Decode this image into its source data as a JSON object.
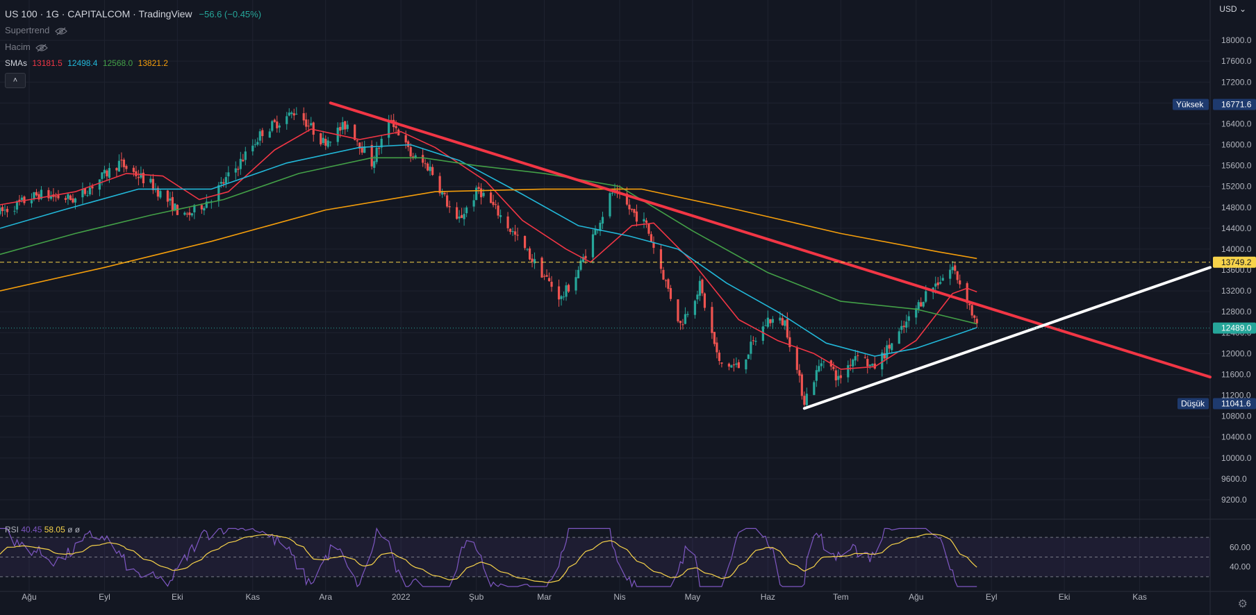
{
  "header": {
    "symbol": "US 100",
    "interval": "1G",
    "exchange": "CAPITALCOM",
    "source": "TradingView",
    "change": "−56.6 (−0.45%)"
  },
  "indicators": {
    "supertrend_label": "Supertrend",
    "volume_label": "Hacim",
    "smas_label": "SMAs",
    "smas_values": [
      {
        "value": "13181.5",
        "color": "#f23645"
      },
      {
        "value": "12498.4",
        "color": "#22b8d9"
      },
      {
        "value": "12568.0",
        "color": "#43a047"
      },
      {
        "value": "13821.2",
        "color": "#f59e0b"
      }
    ]
  },
  "controls": {
    "collapse_icon": "chevron-up-icon",
    "collapse_glyph": "˄",
    "currency": "USD",
    "settings_icon": "gear-icon",
    "settings_glyph": "⚙"
  },
  "rsi": {
    "label": "RSI",
    "value1": "40.45",
    "value2": "58.05",
    "extra": "ø ø",
    "axis_ticks": [
      "60.00",
      "40.00"
    ],
    "tick_values": [
      60,
      40
    ],
    "bands": [
      70,
      50,
      30
    ]
  },
  "chart_data": {
    "type": "candlestick",
    "title": "US 100 · 1G · CAPITALCOM",
    "xlabel": "",
    "ylabel": "",
    "ylim": [
      9000,
      18400
    ],
    "y_ticks": [
      9200,
      9600,
      10000,
      10400,
      10800,
      11200,
      11600,
      12000,
      12400,
      12800,
      13200,
      13600,
      14000,
      14400,
      14800,
      15200,
      15600,
      16000,
      16400,
      16800,
      17200,
      17600,
      18000
    ],
    "y_tick_labels": [
      "9200.0",
      "9600.0",
      "10000.0",
      "10400.0",
      "10800.0",
      "11200.0",
      "11600.0",
      "12000.0",
      "12400.0",
      "12800.0",
      "13200.0",
      "13600.0",
      "14000.0",
      "14400.0",
      "14800.0",
      "15200.0",
      "15600.0",
      "16000.0",
      "16400.0",
      "16800.0",
      "17200.0",
      "17600.0",
      "18000.0"
    ],
    "x_month_labels": [
      "Ağu",
      "Eyl",
      "Eki",
      "Kas",
      "Ara",
      "2022",
      "Şub",
      "Mar",
      "Nis",
      "May",
      "Haz",
      "Tem",
      "Ağu",
      "Eyl",
      "Eki",
      "Kas"
    ],
    "x_month_dates": [
      "2021-08-01",
      "2021-09-01",
      "2021-10-01",
      "2021-11-01",
      "2021-12-01",
      "2022-01-01",
      "2022-02-01",
      "2022-03-01",
      "2022-04-01",
      "2022-05-01",
      "2022-06-01",
      "2022-07-01",
      "2022-08-01",
      "2022-09-01",
      "2022-10-01",
      "2022-11-01"
    ],
    "price_path": [
      [
        "2021-07-20",
        14700
      ],
      [
        "2021-08-05",
        15050
      ],
      [
        "2021-08-20",
        14950
      ],
      [
        "2021-09-07",
        15650
      ],
      [
        "2021-09-20",
        15250
      ],
      [
        "2021-10-04",
        14600
      ],
      [
        "2021-10-14",
        14950
      ],
      [
        "2021-10-25",
        15550
      ],
      [
        "2021-11-05",
        16250
      ],
      [
        "2021-11-19",
        16650
      ],
      [
        "2021-11-30",
        16050
      ],
      [
        "2021-12-10",
        16400
      ],
      [
        "2021-12-20",
        15650
      ],
      [
        "2021-12-28",
        16500
      ],
      [
        "2022-01-05",
        15800
      ],
      [
        "2022-01-13",
        15550
      ],
      [
        "2022-01-24",
        14500
      ],
      [
        "2022-02-02",
        15150
      ],
      [
        "2022-02-10",
        14700
      ],
      [
        "2022-02-24",
        13800
      ],
      [
        "2022-03-08",
        13050
      ],
      [
        "2022-03-14",
        13500
      ],
      [
        "2022-03-29",
        15100
      ],
      [
        "2022-04-12",
        14450
      ],
      [
        "2022-04-26",
        12550
      ],
      [
        "2022-05-04",
        13300
      ],
      [
        "2022-05-12",
        11800
      ],
      [
        "2022-05-20",
        11750
      ],
      [
        "2022-06-01",
        12650
      ],
      [
        "2022-06-08",
        12600
      ],
      [
        "2022-06-16",
        11100
      ],
      [
        "2022-06-24",
        11950
      ],
      [
        "2022-06-30",
        11500
      ],
      [
        "2022-07-08",
        12050
      ],
      [
        "2022-07-14",
        11700
      ],
      [
        "2022-07-27",
        12500
      ],
      [
        "2022-08-05",
        13150
      ],
      [
        "2022-08-16",
        13650
      ],
      [
        "2022-08-22",
        13050
      ],
      [
        "2022-08-26",
        12489
      ]
    ],
    "series": [
      {
        "name": "SMA 13181.5",
        "color": "#f23645",
        "values": [
          [
            "2021-07-20",
            14850
          ],
          [
            "2021-08-20",
            15100
          ],
          [
            "2021-09-10",
            15450
          ],
          [
            "2021-09-25",
            15400
          ],
          [
            "2021-10-10",
            14950
          ],
          [
            "2021-10-22",
            15100
          ],
          [
            "2021-11-10",
            15900
          ],
          [
            "2021-11-25",
            16300
          ],
          [
            "2021-12-15",
            16100
          ],
          [
            "2022-01-01",
            16250
          ],
          [
            "2022-01-15",
            15950
          ],
          [
            "2022-02-05",
            15300
          ],
          [
            "2022-02-20",
            14550
          ],
          [
            "2022-03-10",
            14000
          ],
          [
            "2022-03-20",
            13750
          ],
          [
            "2022-04-06",
            14450
          ],
          [
            "2022-04-15",
            14500
          ],
          [
            "2022-05-01",
            13750
          ],
          [
            "2022-05-20",
            12650
          ],
          [
            "2022-06-05",
            12250
          ],
          [
            "2022-06-20",
            12000
          ],
          [
            "2022-07-01",
            11700
          ],
          [
            "2022-07-15",
            11750
          ],
          [
            "2022-08-01",
            12250
          ],
          [
            "2022-08-16",
            13150
          ],
          [
            "2022-08-22",
            13250
          ],
          [
            "2022-08-26",
            13181.5
          ]
        ]
      },
      {
        "name": "SMA 12498.4",
        "color": "#22b8d9",
        "values": [
          [
            "2021-07-20",
            14400
          ],
          [
            "2021-08-15",
            14750
          ],
          [
            "2021-09-15",
            15150
          ],
          [
            "2021-10-15",
            15150
          ],
          [
            "2021-11-15",
            15650
          ],
          [
            "2021-12-15",
            15950
          ],
          [
            "2022-01-05",
            16000
          ],
          [
            "2022-01-25",
            15700
          ],
          [
            "2022-02-20",
            15050
          ],
          [
            "2022-03-15",
            14450
          ],
          [
            "2022-04-05",
            14250
          ],
          [
            "2022-04-25",
            14000
          ],
          [
            "2022-05-15",
            13350
          ],
          [
            "2022-06-05",
            12800
          ],
          [
            "2022-06-25",
            12200
          ],
          [
            "2022-07-15",
            11950
          ],
          [
            "2022-08-01",
            12100
          ],
          [
            "2022-08-20",
            12400
          ],
          [
            "2022-08-26",
            12498.4
          ]
        ]
      },
      {
        "name": "SMA 12568.0",
        "color": "#43a047",
        "values": [
          [
            "2021-07-20",
            13900
          ],
          [
            "2021-08-20",
            14300
          ],
          [
            "2021-09-20",
            14650
          ],
          [
            "2021-10-20",
            14950
          ],
          [
            "2021-11-20",
            15450
          ],
          [
            "2021-12-20",
            15750
          ],
          [
            "2022-01-10",
            15750
          ],
          [
            "2022-02-01",
            15600
          ],
          [
            "2022-03-01",
            15450
          ],
          [
            "2022-04-01",
            15200
          ],
          [
            "2022-05-01",
            14350
          ],
          [
            "2022-06-01",
            13550
          ],
          [
            "2022-07-01",
            13000
          ],
          [
            "2022-08-01",
            12850
          ],
          [
            "2022-08-26",
            12568
          ]
        ]
      },
      {
        "name": "SMA 13821.2",
        "color": "#f59e0b",
        "values": [
          [
            "2021-07-20",
            13200
          ],
          [
            "2021-09-01",
            13650
          ],
          [
            "2021-10-15",
            14150
          ],
          [
            "2021-12-01",
            14750
          ],
          [
            "2022-01-15",
            15100
          ],
          [
            "2022-03-01",
            15150
          ],
          [
            "2022-04-10",
            15150
          ],
          [
            "2022-05-20",
            14750
          ],
          [
            "2022-07-01",
            14300
          ],
          [
            "2022-08-10",
            13950
          ],
          [
            "2022-08-26",
            13821.2
          ]
        ]
      }
    ],
    "trendlines": [
      {
        "color": "#f23645",
        "from": [
          "2021-12-03",
          16800
        ],
        "to": [
          "2022-11-30",
          11550
        ]
      },
      {
        "color": "#ffffff",
        "from": [
          "2022-06-16",
          10950
        ],
        "to": [
          "2022-11-30",
          13650
        ]
      }
    ],
    "price_lines": [
      {
        "value": 13749.2,
        "color": "#f7d34a",
        "style": "dashed",
        "label": "13749.2"
      },
      {
        "value": 12489.0,
        "color": "#26a69a",
        "style": "dotted",
        "label": "12489.0"
      }
    ],
    "markers": [
      {
        "label": "Yüksek",
        "value": 16771.6,
        "value_label": "16771.6"
      },
      {
        "label": "Düşük",
        "value": 11041.6,
        "value_label": "11041.6"
      }
    ]
  }
}
